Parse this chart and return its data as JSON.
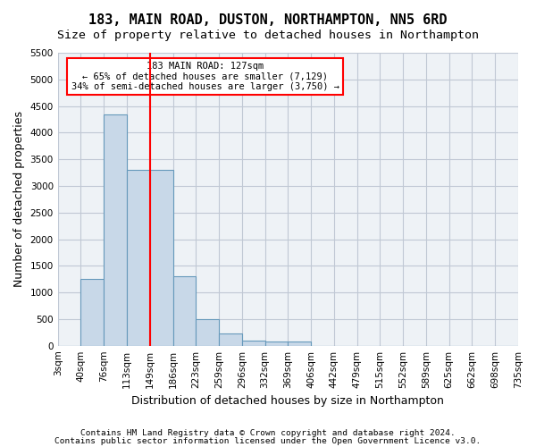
{
  "title": "183, MAIN ROAD, DUSTON, NORTHAMPTON, NN5 6RD",
  "subtitle": "Size of property relative to detached houses in Northampton",
  "xlabel": "Distribution of detached houses by size in Northampton",
  "ylabel": "Number of detached properties",
  "footnote1": "Contains HM Land Registry data © Crown copyright and database right 2024.",
  "footnote2": "Contains public sector information licensed under the Open Government Licence v3.0.",
  "bin_labels": [
    "3sqm",
    "40sqm",
    "76sqm",
    "113sqm",
    "149sqm",
    "186sqm",
    "223sqm",
    "259sqm",
    "296sqm",
    "332sqm",
    "369sqm",
    "406sqm",
    "442sqm",
    "479sqm",
    "515sqm",
    "552sqm",
    "589sqm",
    "625sqm",
    "662sqm",
    "698sqm",
    "735sqm"
  ],
  "bar_heights": [
    0,
    1250,
    4350,
    3300,
    3300,
    1300,
    500,
    225,
    100,
    75,
    75,
    0,
    0,
    0,
    0,
    0,
    0,
    0,
    0,
    0
  ],
  "bar_color": "#c8d8e8",
  "bar_edge_color": "#6699bb",
  "bar_edge_width": 0.8,
  "red_line_x": 4,
  "ylim": [
    0,
    5500
  ],
  "yticks": [
    0,
    500,
    1000,
    1500,
    2000,
    2500,
    3000,
    3500,
    4000,
    4500,
    5000,
    5500
  ],
  "annotation_text": "183 MAIN ROAD: 127sqm\n← 65% of detached houses are smaller (7,129)\n34% of semi-detached houses are larger (3,750) →",
  "bg_color": "#eef2f6",
  "grid_color": "#c0c8d4",
  "title_fontsize": 11,
  "subtitle_fontsize": 9.5,
  "axis_label_fontsize": 9,
  "tick_fontsize": 7.5,
  "footnote_fontsize": 6.8
}
